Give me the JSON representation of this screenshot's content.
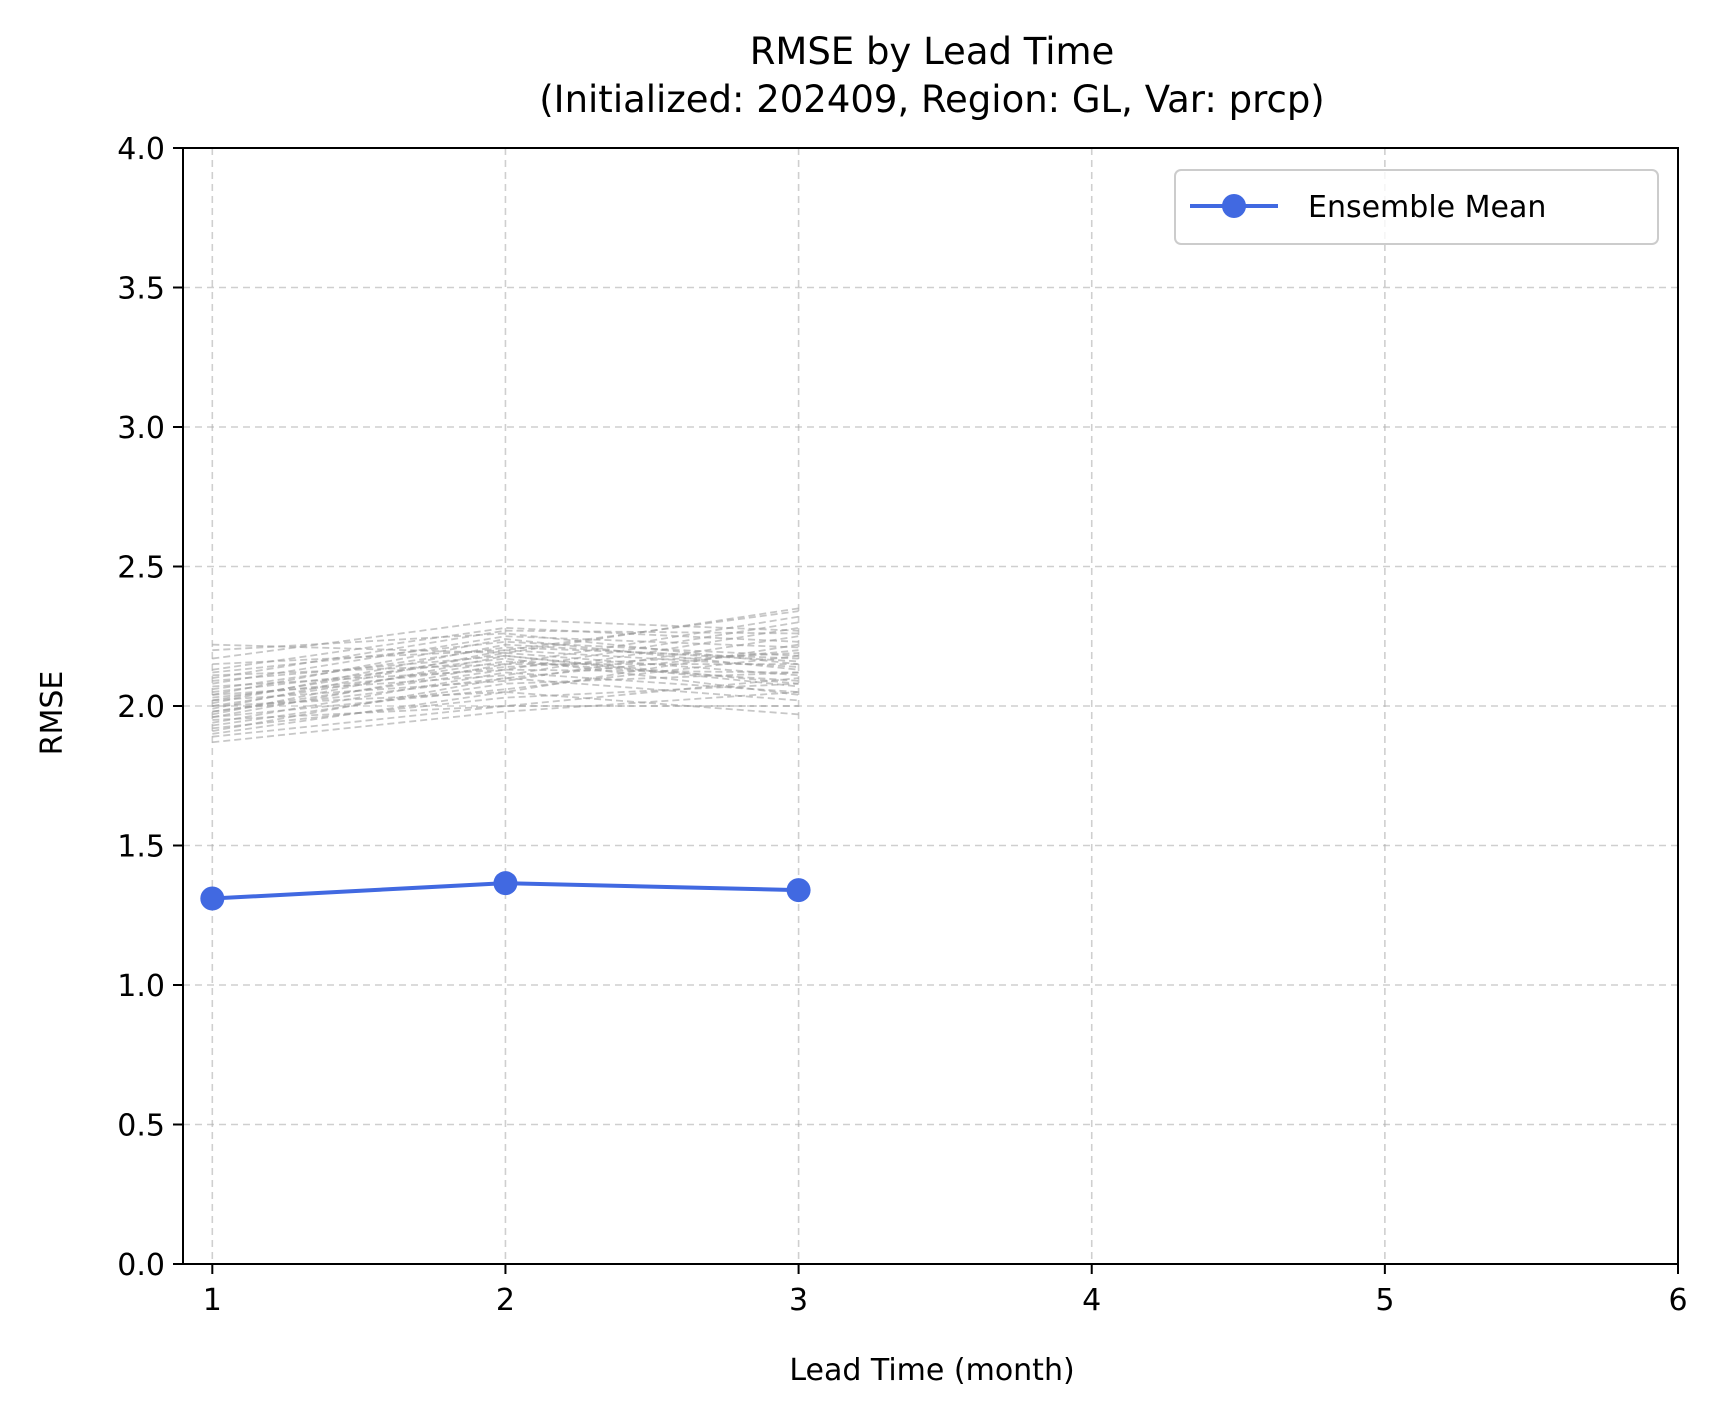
{
  "chart_data": {
    "type": "line",
    "title": "RMSE by Lead Time",
    "subtitle": "(Initialized: 202409, Region: GL, Var: prcp)",
    "xlabel": "Lead Time (month)",
    "ylabel": "RMSE",
    "xlim": [
      0.9,
      6
    ],
    "ylim": [
      0,
      4
    ],
    "xticks": [
      1,
      2,
      3,
      4,
      5,
      6
    ],
    "yticks": [
      0.0,
      0.5,
      1.0,
      1.5,
      2.0,
      2.5,
      3.0,
      3.5,
      4.0
    ],
    "ytick_labels": [
      "0.0",
      "0.5",
      "1.0",
      "1.5",
      "2.0",
      "2.5",
      "3.0",
      "3.5",
      "4.0"
    ],
    "xtick_labels": [
      "1",
      "2",
      "3",
      "4",
      "5",
      "6"
    ],
    "grid": true,
    "legend_position": "top-right",
    "x": [
      1,
      2,
      3
    ],
    "series": [
      {
        "name": "Ensemble Mean",
        "values": [
          1.31,
          1.365,
          1.34
        ],
        "color": "#4169E1",
        "style": "solid",
        "marker": "circle"
      }
    ],
    "member_color": "#999999",
    "members": [
      [
        1.87,
        1.98,
        2.05
      ],
      [
        1.89,
        2.0,
        2.0
      ],
      [
        1.9,
        2.05,
        1.97
      ],
      [
        1.91,
        2.1,
        2.02
      ],
      [
        1.92,
        2.03,
        2.08
      ],
      [
        1.93,
        2.08,
        2.12
      ],
      [
        1.94,
        2.12,
        2.05
      ],
      [
        1.95,
        2.0,
        2.1
      ],
      [
        1.96,
        2.15,
        2.15
      ],
      [
        1.96,
        2.06,
        2.18
      ],
      [
        1.97,
        2.18,
        2.07
      ],
      [
        1.98,
        2.1,
        2.2
      ],
      [
        1.98,
        2.13,
        2.12
      ],
      [
        1.99,
        2.2,
        2.14
      ],
      [
        2.0,
        2.05,
        2.22
      ],
      [
        2.0,
        2.16,
        2.09
      ],
      [
        2.01,
        2.22,
        2.16
      ],
      [
        2.02,
        2.09,
        2.25
      ],
      [
        2.02,
        2.19,
        2.11
      ],
      [
        2.03,
        2.14,
        2.19
      ],
      [
        2.04,
        2.24,
        2.13
      ],
      [
        2.04,
        2.11,
        2.28
      ],
      [
        2.05,
        2.17,
        2.04
      ],
      [
        2.06,
        2.21,
        2.17
      ],
      [
        2.07,
        2.13,
        2.3
      ],
      [
        2.08,
        2.25,
        2.21
      ],
      [
        2.09,
        2.18,
        2.08
      ],
      [
        2.1,
        2.27,
        2.26
      ],
      [
        2.11,
        2.15,
        2.32
      ],
      [
        2.12,
        2.23,
        2.18
      ],
      [
        2.13,
        2.28,
        2.23
      ],
      [
        2.15,
        2.2,
        2.34
      ],
      [
        2.17,
        2.31,
        2.27
      ],
      [
        2.2,
        2.26,
        2.15
      ],
      [
        2.22,
        2.19,
        2.35
      ]
    ]
  }
}
